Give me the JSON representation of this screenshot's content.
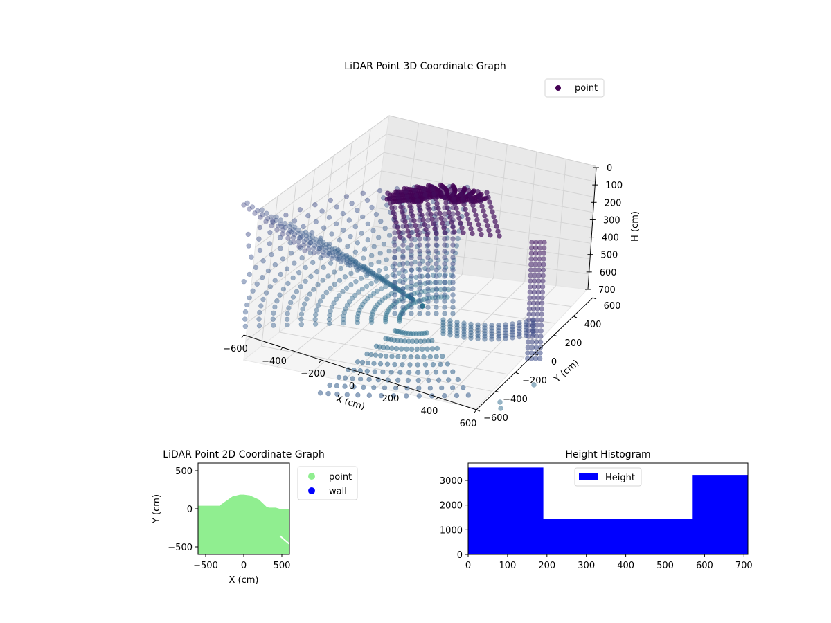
{
  "chart_data": [
    {
      "type": "scatter",
      "title": "LiDAR Point 3D Coordinate Graph",
      "xlabel": "X (cm)",
      "ylabel": "Y (cm)",
      "zlabel": "H (cm)",
      "xticks": [
        -600,
        -400,
        -200,
        0,
        200,
        400,
        600
      ],
      "yticks": [
        -600,
        -400,
        -200,
        0,
        200,
        400,
        600
      ],
      "zticks": [
        0,
        100,
        200,
        300,
        400,
        500,
        600,
        700
      ],
      "xlim": [
        -600,
        600
      ],
      "ylim": [
        -600,
        600
      ],
      "zlim": [
        700,
        0
      ],
      "z_inverted": true,
      "grid": true,
      "colormap": "viridis (purple to teal)",
      "legend": {
        "placement": "top-right",
        "entries": [
          {
            "label": "point",
            "color": "#440154"
          }
        ]
      },
      "series": [
        {
          "name": "point",
          "color": "#440154"
        }
      ]
    },
    {
      "type": "area",
      "title": "LiDAR Point 2D Coordinate Graph",
      "xlabel": "X (cm)",
      "ylabel": "Y (cm)",
      "xticks": [
        -500,
        0,
        500
      ],
      "yticks": [
        500,
        0,
        -500
      ],
      "xlim": [
        -600,
        600
      ],
      "ylim": [
        -600,
        600
      ],
      "legend": {
        "placement": "outside-right",
        "entries": [
          {
            "label": "point",
            "color": "#90ee90"
          },
          {
            "label": "wall",
            "color": "#0000ff"
          }
        ]
      },
      "boundary": {
        "x": [
          -600,
          -320,
          -250,
          -150,
          -50,
          0,
          80,
          200,
          300,
          330,
          420,
          470,
          560,
          600
        ],
        "y": [
          40,
          40,
          90,
          160,
          185,
          185,
          175,
          120,
          25,
          15,
          15,
          0,
          0,
          0
        ]
      },
      "series": [
        {
          "name": "point",
          "color": "#90ee90"
        },
        {
          "name": "wall",
          "color": "#0000ff"
        }
      ]
    },
    {
      "type": "bar",
      "title": "Height Histogram",
      "xlabel": "",
      "ylabel": "",
      "xticks": [
        0,
        100,
        200,
        300,
        400,
        500,
        600,
        700
      ],
      "yticks": [
        0,
        1000,
        2000,
        3000
      ],
      "xlim": [
        0,
        710
      ],
      "ylim": [
        0,
        3700
      ],
      "bin_edges": [
        0,
        190,
        380,
        570,
        710
      ],
      "values": [
        3520,
        1430,
        1430,
        3220
      ],
      "legend": {
        "placement": "top-center",
        "entries": [
          {
            "label": "Height",
            "color": "#0000ff"
          }
        ]
      },
      "series": [
        {
          "name": "Height",
          "color": "#0000ff"
        }
      ]
    }
  ]
}
